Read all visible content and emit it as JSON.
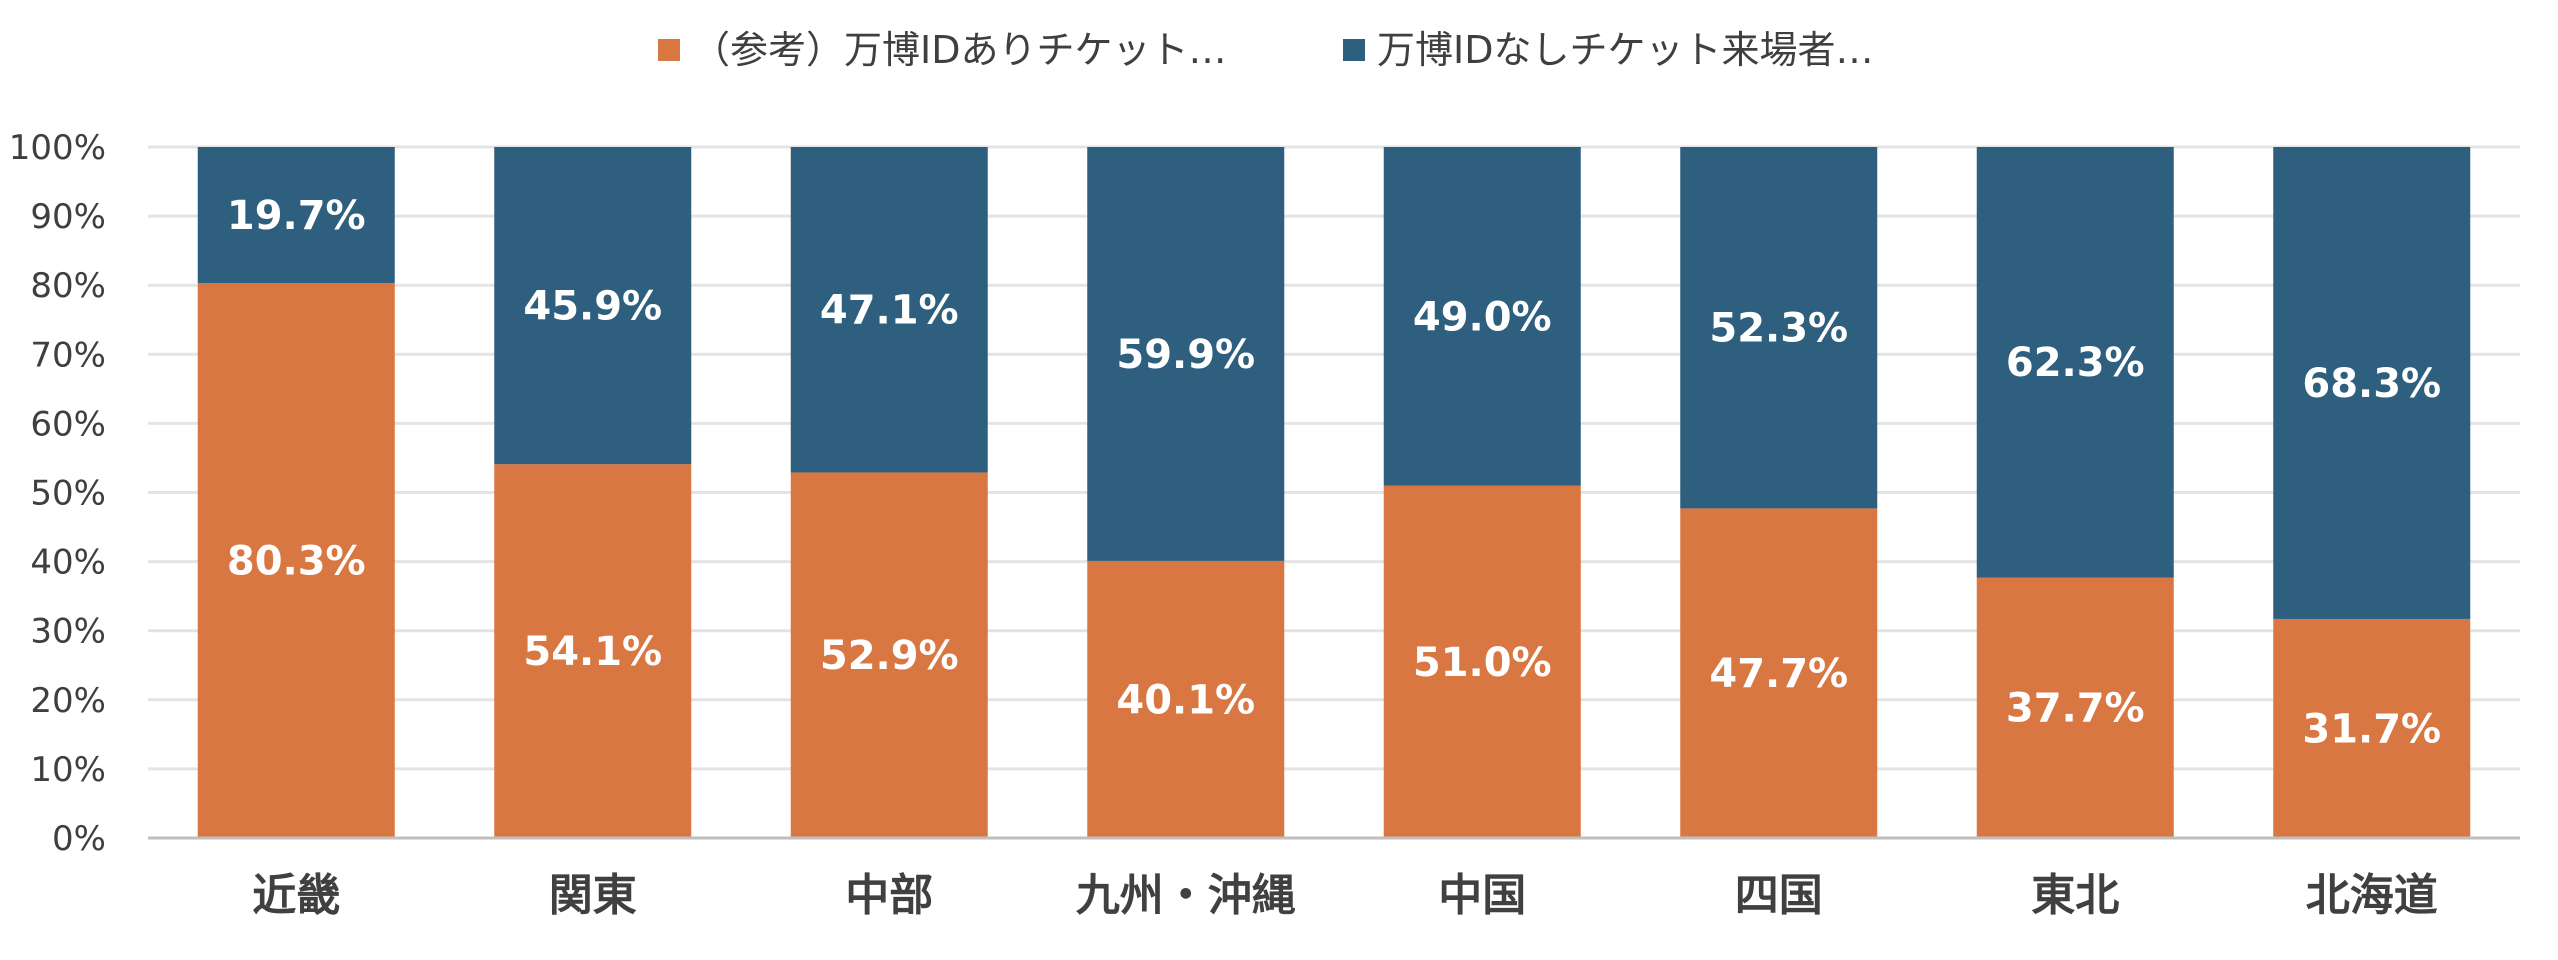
{
  "chart_data": {
    "type": "bar",
    "stacked": true,
    "title": "",
    "xlabel": "",
    "ylabel": "",
    "ylim": [
      0,
      100
    ],
    "yticks": [
      "0%",
      "10%",
      "20%",
      "30%",
      "40%",
      "50%",
      "60%",
      "70%",
      "80%",
      "90%",
      "100%"
    ],
    "grid": true,
    "legend_position": "top",
    "categories": [
      "近畿",
      "関東",
      "中部",
      "九州・沖縄",
      "中国",
      "四国",
      "東北",
      "北海道"
    ],
    "series": [
      {
        "name": "（参考）万博IDありチケット…",
        "color": "#D97742",
        "values": [
          80.3,
          54.1,
          52.9,
          40.1,
          51.0,
          47.7,
          37.7,
          31.7
        ],
        "labels": [
          "80.3%",
          "54.1%",
          "52.9%",
          "40.1%",
          "51.0%",
          "47.7%",
          "37.7%",
          "31.7%"
        ]
      },
      {
        "name": "万博IDなしチケット来場者…",
        "color": "#2E5F7E",
        "values": [
          19.7,
          45.9,
          47.1,
          59.9,
          49.0,
          52.3,
          62.3,
          68.3
        ],
        "labels": [
          "19.7%",
          "45.9%",
          "47.1%",
          "59.9%",
          "49.0%",
          "52.3%",
          "62.3%",
          "68.3%"
        ]
      }
    ],
    "colors": {
      "grid": "#E4E4E4",
      "axis": "#BFBFBF"
    }
  }
}
